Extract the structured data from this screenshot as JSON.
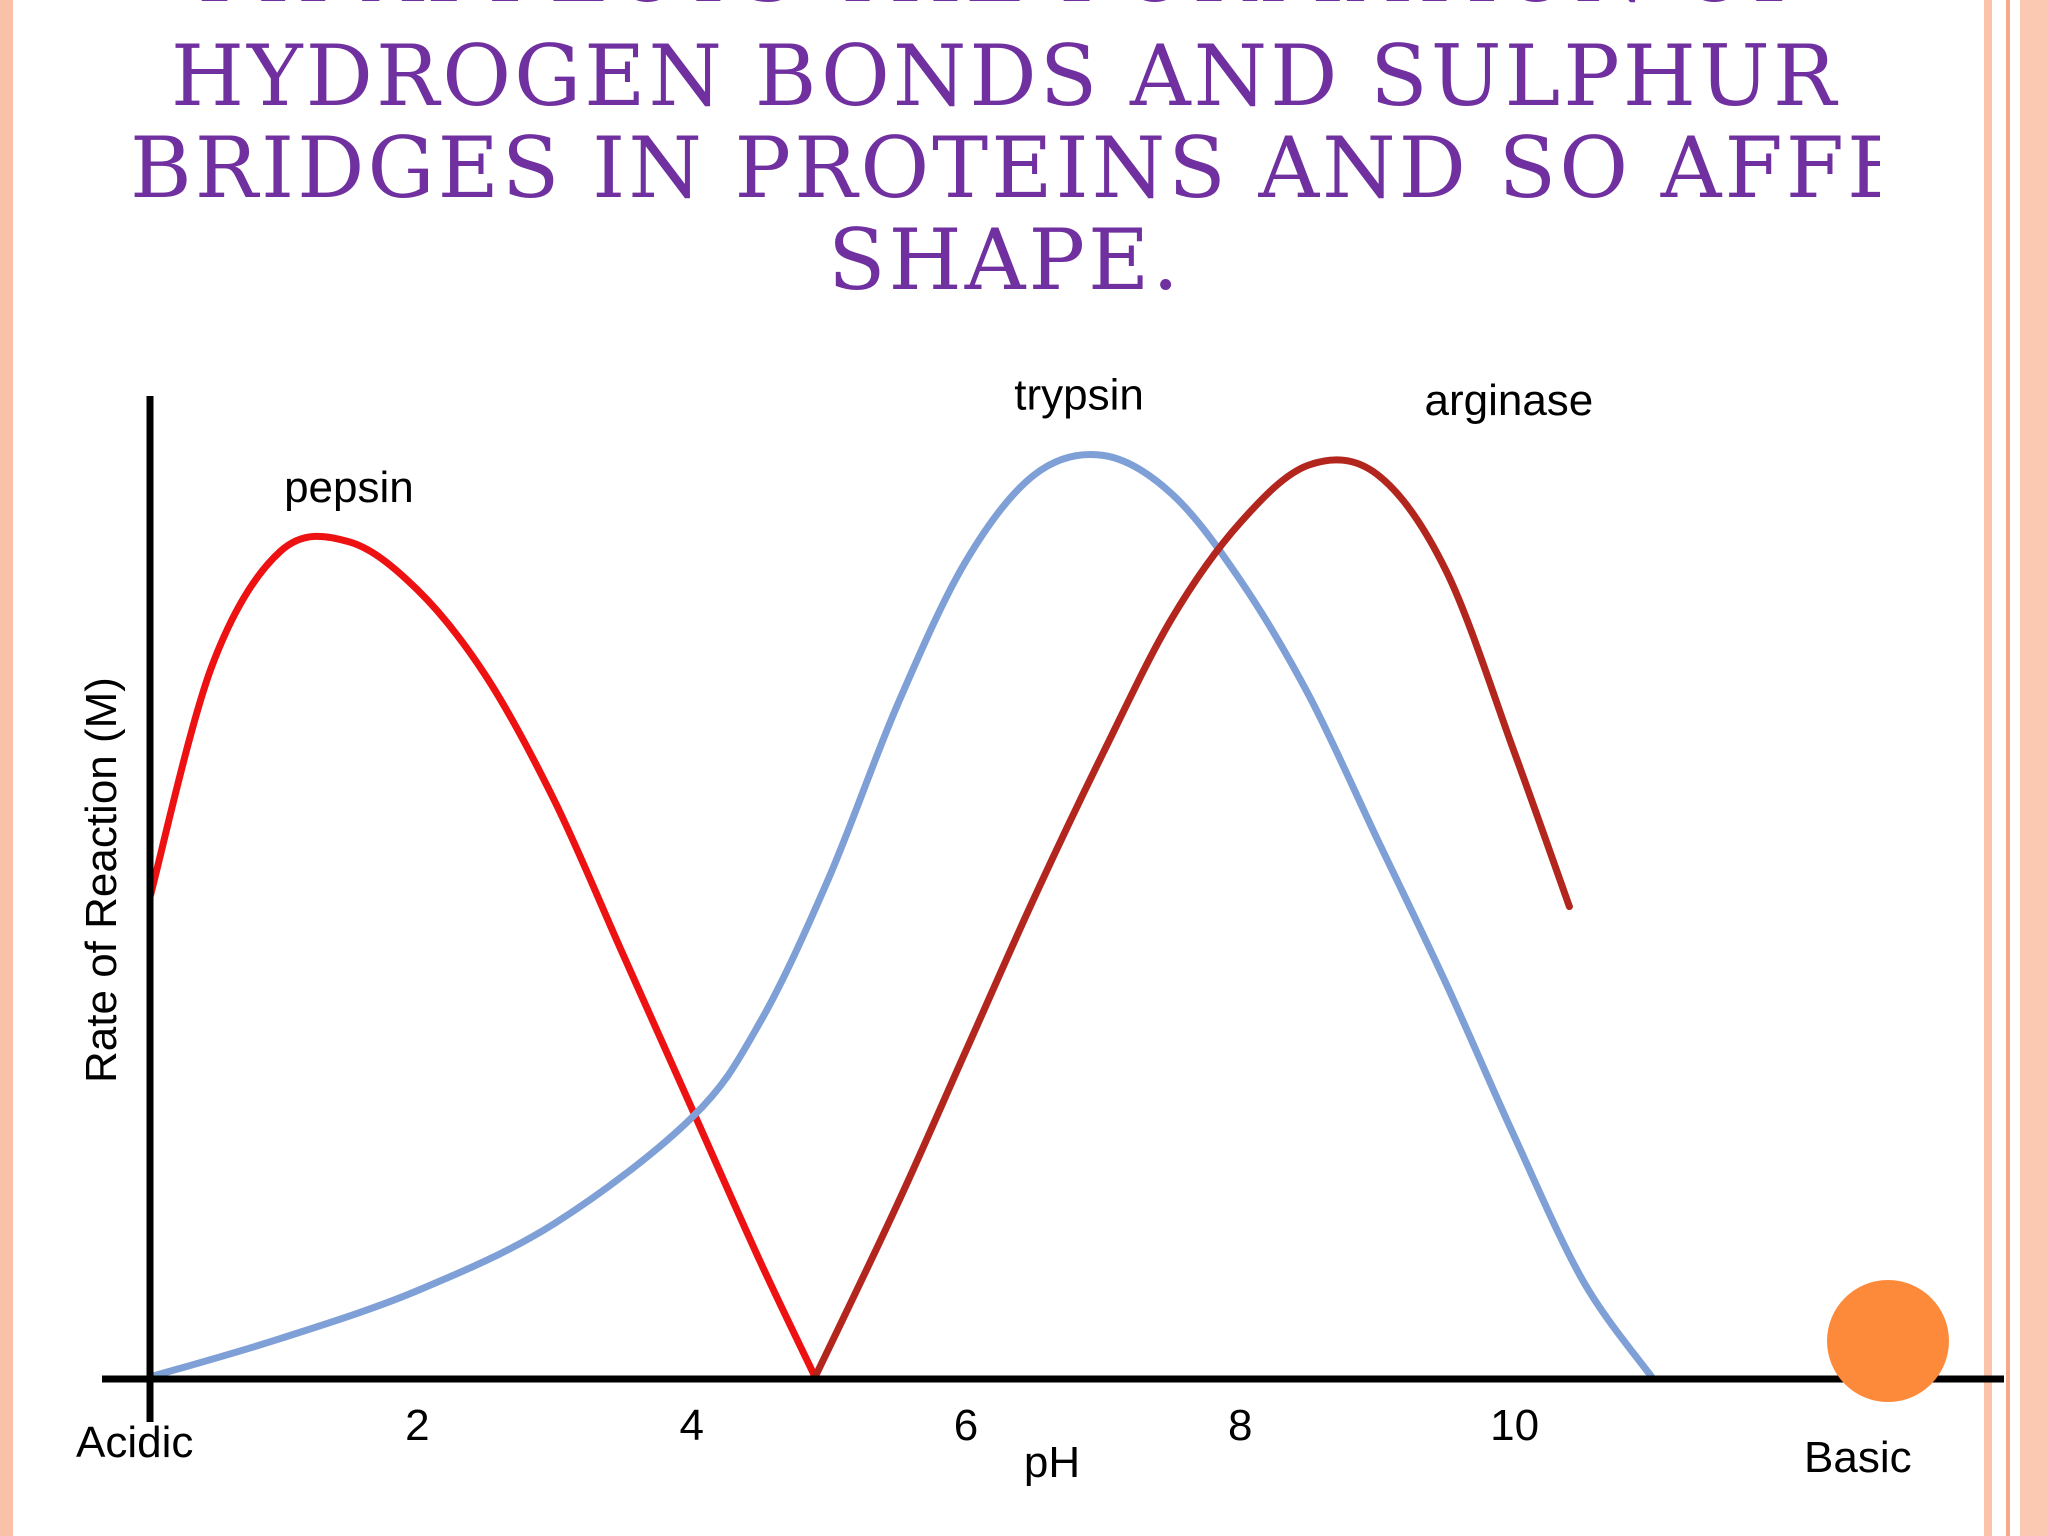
{
  "theme": {
    "title_color": "#7030a0",
    "frame_color": "#f9c1a8",
    "accent_dot_color": "#fd8a3b"
  },
  "slide": {
    "title_cut_line": "pH affects the formation of",
    "title_lines": [
      "hydrogen bonds and sulphur",
      "bridges in proteins and so affects",
      "shape."
    ]
  },
  "chart_data": {
    "type": "line",
    "title": "",
    "xlabel": "pH",
    "ylabel": "Rate of Reaction (M)",
    "xlim": [
      0.05,
      12.3
    ],
    "ylim": [
      0,
      1
    ],
    "x_ticks": [
      2,
      4,
      6,
      8,
      10
    ],
    "x_end_labels": {
      "left": "Acidic",
      "right": "Basic"
    },
    "grid": false,
    "legend": "none (series labelled directly above each curve)",
    "series": [
      {
        "name": "pepsin",
        "color": "#ee1111",
        "points": [
          [
            0.05,
            0.5
          ],
          [
            0.5,
            0.74
          ],
          [
            1.0,
            0.86
          ],
          [
            1.5,
            0.87
          ],
          [
            2.0,
            0.82
          ],
          [
            2.5,
            0.73
          ],
          [
            3.0,
            0.6
          ],
          [
            3.5,
            0.44
          ],
          [
            4.0,
            0.28
          ],
          [
            4.5,
            0.12
          ],
          [
            4.9,
            0.0
          ]
        ]
      },
      {
        "name": "trypsin",
        "color": "#7fa0d6",
        "points": [
          [
            0.05,
            0.0
          ],
          [
            1.0,
            0.04
          ],
          [
            2.0,
            0.09
          ],
          [
            3.0,
            0.16
          ],
          [
            4.0,
            0.27
          ],
          [
            4.5,
            0.37
          ],
          [
            5.0,
            0.52
          ],
          [
            5.5,
            0.7
          ],
          [
            6.0,
            0.85
          ],
          [
            6.5,
            0.94
          ],
          [
            7.0,
            0.96
          ],
          [
            7.5,
            0.92
          ],
          [
            8.0,
            0.83
          ],
          [
            8.5,
            0.71
          ],
          [
            9.0,
            0.56
          ],
          [
            9.5,
            0.41
          ],
          [
            10.0,
            0.25
          ],
          [
            10.5,
            0.1
          ],
          [
            11.0,
            0.0
          ]
        ]
      },
      {
        "name": "arginase",
        "color": "#b3261e",
        "points": [
          [
            4.9,
            0.0
          ],
          [
            5.5,
            0.18
          ],
          [
            6.0,
            0.34
          ],
          [
            6.5,
            0.5
          ],
          [
            7.0,
            0.65
          ],
          [
            7.5,
            0.79
          ],
          [
            8.0,
            0.89
          ],
          [
            8.5,
            0.95
          ],
          [
            9.0,
            0.94
          ],
          [
            9.5,
            0.84
          ],
          [
            10.0,
            0.65
          ],
          [
            10.4,
            0.49
          ]
        ]
      }
    ]
  }
}
